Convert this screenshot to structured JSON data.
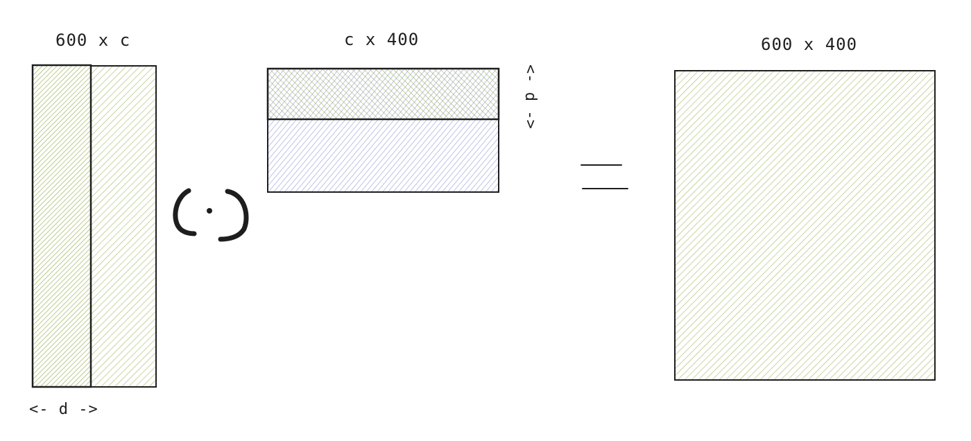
{
  "diagram": {
    "matrix_a": {
      "label": "600 x c",
      "sub_label": "<- d ->"
    },
    "operator": {
      "symbol": "(·)"
    },
    "matrix_b": {
      "label": "c x 400",
      "sub_label": "<- d ->"
    },
    "equals": {
      "symbol": "="
    },
    "matrix_c": {
      "label": "600 x 400"
    }
  },
  "colors": {
    "stroke": "#1e1e1e",
    "green_fill": "#8ea63f",
    "blue_fill": "#6b7fc4"
  }
}
